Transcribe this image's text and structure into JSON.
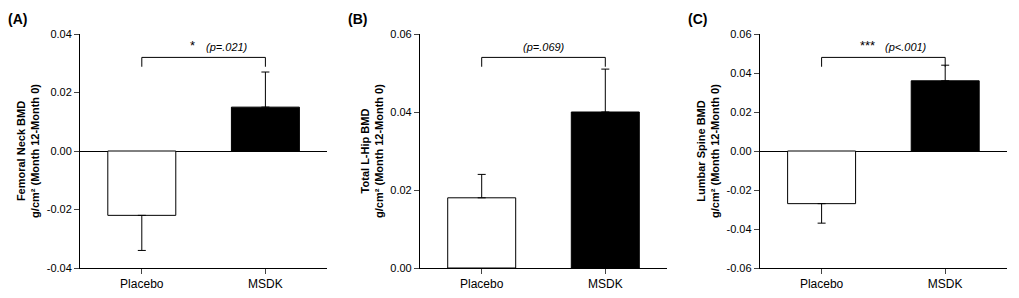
{
  "chart_data": [
    {
      "type": "bar",
      "title": "(A)",
      "y_label": "Femoral Neck BMD\ng/cm² (Month 12-Month 0)",
      "categories": [
        "Placebo",
        "MSDK"
      ],
      "values": [
        -0.022,
        0.015
      ],
      "errors": [
        0.012,
        0.012
      ],
      "colors": [
        "#ffffff",
        "#000000"
      ],
      "ylim": [
        -0.04,
        0.04
      ],
      "yticks": [
        -0.04,
        -0.02,
        {
          "value": 0.0,
          "label": "0.00"
        },
        0.02,
        0.04
      ],
      "annotations": [
        "*",
        "(p=.021)"
      ],
      "grid": false
    },
    {
      "type": "bar",
      "title": "(B)",
      "y_label": "Total L-Hip BMD\ng/cm² (Month 12-Month 0)",
      "categories": [
        "Placebo",
        "MSDK"
      ],
      "values": [
        0.018,
        0.04
      ],
      "errors": [
        0.006,
        0.011
      ],
      "colors": [
        "#ffffff",
        "#000000"
      ],
      "ylim": [
        0.0,
        0.06
      ],
      "yticks": [
        {
          "value": 0.0,
          "label": "0.00"
        },
        0.02,
        0.04,
        0.06
      ],
      "annotations": [
        "(p=.069)"
      ],
      "grid": false
    },
    {
      "type": "bar",
      "title": "(C)",
      "y_label": "Lumbar Spine BMD\ng/cm² (Month 12-Month 0)",
      "categories": [
        "Placebo",
        "MSDK"
      ],
      "values": [
        -0.027,
        0.036
      ],
      "errors": [
        0.01,
        0.008
      ],
      "colors": [
        "#ffffff",
        "#000000"
      ],
      "ylim": [
        -0.06,
        0.06
      ],
      "yticks": [
        -0.06,
        -0.04,
        -0.02,
        {
          "value": 0.0,
          "label": "0.00"
        },
        0.02,
        0.04,
        0.06
      ],
      "annotations": [
        "***",
        "(p<.001)"
      ],
      "grid": false
    }
  ]
}
